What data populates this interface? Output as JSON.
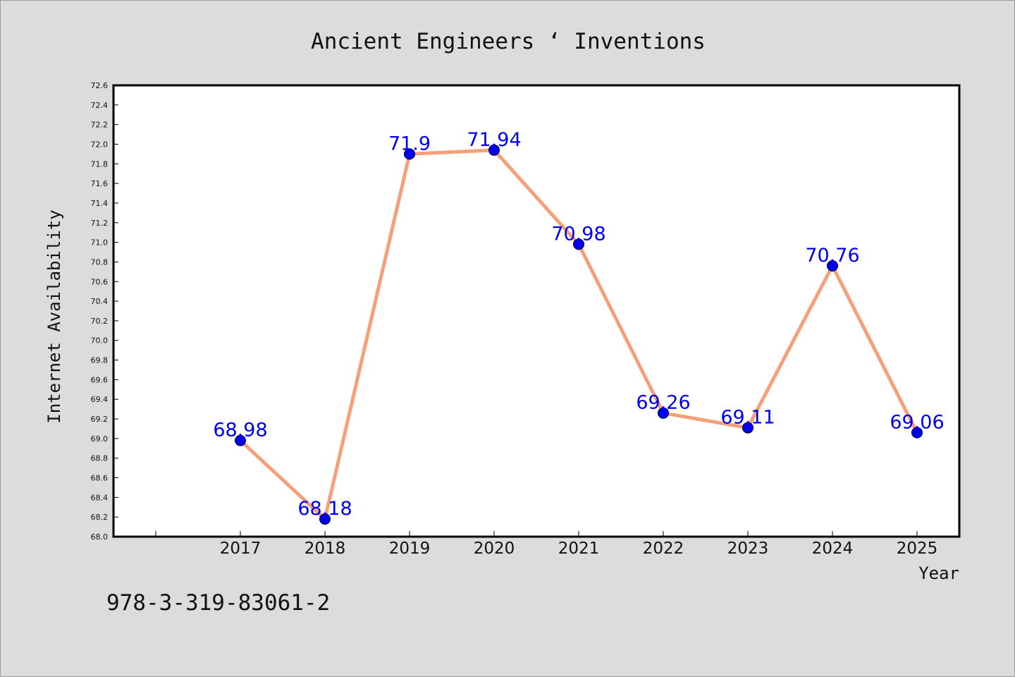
{
  "footer_text": "978-3-319-83061-2",
  "colors": {
    "background": "#dcdcdc",
    "plot_background": "#ffffff",
    "line": "#f5a07a",
    "marker": "#0000ee",
    "data_label": "#0000ee"
  },
  "chart_data": {
    "type": "line",
    "title": "Ancient Engineers ‘ Inventions",
    "xlabel": "Year",
    "ylabel": "Internet Availability",
    "categories": [
      "2017",
      "2018",
      "2019",
      "2020",
      "2021",
      "2022",
      "2023",
      "2024",
      "2025"
    ],
    "series": [
      {
        "values": [
          68.98,
          68.18,
          71.9,
          71.94,
          70.98,
          69.26,
          69.11,
          70.76,
          69.06
        ],
        "data_labels": [
          "68.98",
          "68.18",
          "71.9",
          "71.94",
          "70.98",
          "69.26",
          "69.11",
          "70.76",
          "69.06"
        ]
      }
    ],
    "ylim": [
      68.0,
      72.6
    ],
    "yticks": [
      "68.0",
      "68.2",
      "68.4",
      "68.6",
      "68.8",
      "69.0",
      "69.2",
      "69.4",
      "69.6",
      "69.8",
      "70.0",
      "70.2",
      "70.4",
      "70.6",
      "70.8",
      "71.0",
      "71.2",
      "71.4",
      "71.6",
      "71.8",
      "72.0",
      "72.2",
      "72.4",
      "72.6"
    ],
    "grid": false,
    "legend": "none"
  }
}
